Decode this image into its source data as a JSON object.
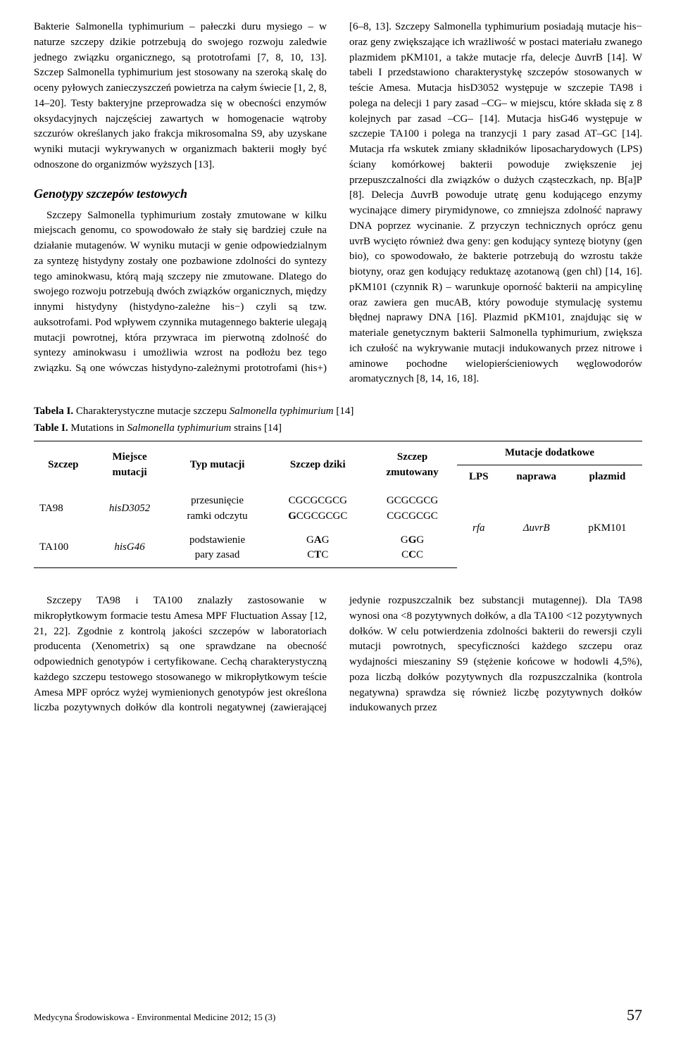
{
  "para1": "Bakterie Salmonella typhimurium – pałeczki duru mysiego – w naturze szczepy dzikie potrzebują do swojego rozwoju zaledwie jednego związku organicznego, są prototrofami [7, 8, 10, 13]. Szczep Salmonella typhimurium jest stosowany na szeroką skalę do oceny pyłowych zanieczyszczeń powietrza na całym świecie [1, 2, 8, 14–20]. Testy bakteryjne przeprowadza się w obecności enzymów oksydacyjnych najczęściej zawartych w homogenacie wątroby szczurów określanych jako frakcja mikrosomalna S9, aby uzyskane wyniki mutacji wykrywanych w organizmach bakterii mogły być odnoszone do organizmów wyższych [13].",
  "heading1": "Genotypy szczepów testowych",
  "para2": "Szczepy Salmonella typhimurium zostały zmutowane w kilku miejscach genomu, co spowodowało że stały się bardziej czułe na działanie mutagenów. W wyniku mutacji w genie odpowiedzialnym za syntezę histydyny zostały one pozbawione zdolności do syntezy tego aminokwasu, którą mają szczepy nie zmutowane. Dlatego do swojego rozwoju potrzebują dwóch związków organicznych, między innymi histydyny (histydyno-zależne his−) czyli są tzw. auksotrofami. Pod wpływem czynnika mutagennego bakterie ulegają mutacji powrotnej, która przywraca im pierwotną zdolność do syntezy aminokwasu i umożliwia wzrost na podłożu bez tego związku. Są one wówczas histydyno-zależnymi prototrofami (his+) [6–8, 13]. Szczepy Salmonella typhimurium posiadają mutacje his− oraz geny zwiększające ich wrażliwość w postaci materiału zwanego plazmidem pKM101, a także mutacje rfa, delecje ΔuvrB [14]. W tabeli I przedstawiono charakterystykę szczepów stosowanych w teście Amesa. Mutacja hisD3052 występuje w szczepie TA98 i polega na delecji 1 pary zasad –CG– w miejscu, które składa się z 8 kolejnych par zasad –CG– [14]. Mutacja hisG46 występuje w szczepie TA100 i polega na tranzycji 1 pary zasad AT–GC [14]. Mutacja rfa wskutek zmiany składników liposacharydowych (LPS) ściany komórkowej bakterii powoduje zwiększenie jej przepuszczalności dla związków o dużych cząsteczkach, np. B[a]P [8]. Delecja ΔuvrB powoduje utratę genu kodującego enzymy wycinające dimery pirymidynowe, co zmniejsza zdolność naprawy DNA poprzez wycinanie. Z przyczyn technicznych oprócz genu uvrB wycięto również dwa geny: gen kodujący syntezę biotyny (gen bio), co spowodowało, że bakterie potrzebują do wzrostu także biotyny, oraz gen kodujący reduktazę azotanową (gen chl) [14, 16]. pKM101 (czynnik R) – warunkuje oporność bakterii na ampicylinę oraz zawiera gen mucAB, który powoduje stymulację systemu błędnej naprawy DNA [16]. Plazmid pKM101, znajdując się w materiale genetycznym bakterii Salmonella typhimurium, zwiększa ich czułość na wykrywanie mutacji indukowanych przez nitrowe i aminowe pochodne wielopierścieniowych węglowodorów aromatycznych [8, 14, 16, 18].",
  "tableCaption1a": "Tabela I.",
  "tableCaption1b": " Charakterystyczne mutacje szczepu ",
  "tableCaption1c": "Salmonella typhimurium",
  "tableCaption1d": " [14]",
  "tableCaption2a": "Table I.",
  "tableCaption2b": " Mutations in ",
  "tableCaption2c": "Salmonella typhimurium",
  "tableCaption2d": " strains [14]",
  "table": {
    "headers": {
      "c1": "Szczep",
      "c2a": "Miejsce",
      "c2b": "mutacji",
      "c3": "Typ mutacji",
      "c4": "Szczep dziki",
      "c5a": "Szczep",
      "c5b": "zmutowany",
      "c6": "Mutacje dodatkowe",
      "c6a": "LPS",
      "c6b": "naprawa",
      "c6c": "plazmid"
    },
    "rows": [
      {
        "c1": "TA98",
        "c2": "hisD3052",
        "c3a": "przesunięcie",
        "c3b": "ramki odczytu",
        "c4a": "CGCGCGCG",
        "c4b": "GCGCGCGC",
        "c5a": "GCGCGCG",
        "c5b": "CGCGCGC"
      },
      {
        "c1": "TA100",
        "c2": "hisG46",
        "c3a": "podstawienie",
        "c3b": "pary zasad",
        "c4a": "GAG",
        "c4b": "CTC",
        "c5a": "GGG",
        "c5b": "CCC"
      }
    ],
    "merged": {
      "lps": "rfa",
      "naprawa": "ΔuvrB",
      "plazmid": "pKM101"
    }
  },
  "para3": "Szczepy TA98 i TA100 znalazły zastosowanie w mikropłytkowym formacie testu Amesa MPF Fluctuation Assay [12, 21, 22]. Zgodnie z kontrolą jakości szczepów w laboratoriach producenta (Xenometrix) są one sprawdzane na obecność odpowiednich genotypów i certyfikowane. Cechą charakterystyczną każdego szczepu testowego stosowanego w mikropłytkowym teście Amesa MPF oprócz wyżej wymienionych genotypów jest określona liczba pozytywnych dołków dla kontroli negatywnej (zawierającej jedynie rozpuszczalnik bez substancji mutagennej). Dla TA98 wynosi ona <8 pozytywnych dołków, a dla TA100 <12 pozytywnych dołków. W celu potwierdzenia zdolności bakterii do rewersji czyli mutacji powrotnych, specyficzności każdego szczepu oraz wydajności mieszaniny S9 (stężenie końcowe w hodowli 4,5%), poza liczbą dołków pozytywnych dla rozpuszczalnika (kontrola negatywna) sprawdza się również liczbę pozytywnych dołków indukowanych przez",
  "footer": {
    "journal": "Medycyna Środowiskowa - Environmental Medicine 2012; 15 (3)",
    "page": "57"
  }
}
